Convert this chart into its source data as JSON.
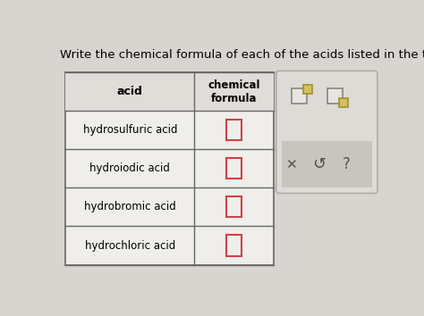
{
  "title": "Write the chemical formula of each of the acids listed in the table below.",
  "title_fontsize": 9.5,
  "bg_color": "#d8d4cf",
  "table_bg": "#f0eeeb",
  "acids": [
    "hydrosulfuric acid",
    "hydroiodic acid",
    "hydrobromic acid",
    "hydrochloric acid"
  ],
  "col_headers": [
    "acid",
    "chemical\nformula"
  ],
  "box_color": "#cc4444",
  "input_box_fill": "#f0eeeb",
  "panel_outer_bg": "#dedad5",
  "panel_inner_bg": "#c8c4be",
  "panel_border": "#b0aca7",
  "sq_main_fill": "#e8e5e0",
  "sq_main_edge": "#888480",
  "sq_gold_fill": "#d4c060",
  "sq_gold_edge": "#a09030",
  "btn_color": "#555050"
}
